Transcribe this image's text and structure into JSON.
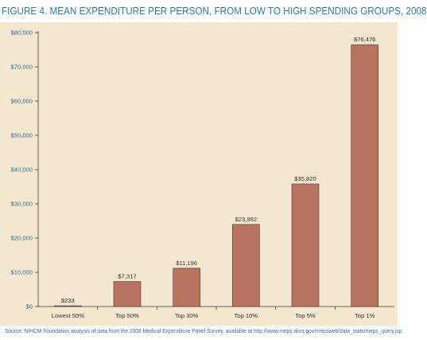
{
  "figure": {
    "title": "FIGURE 4. MEAN EXPENDITURE PER PERSON, FROM LOW TO HIGH SPENDING GROUPS, 2008",
    "source": "Source: NIHCM Foundation analysis of data from the 2008 Medical Expenditure Panel Survey, available at http://www.meps.ahrq.gov/mepsweb/data_stats/meps_query.jsp"
  },
  "colors": {
    "bar_fill": "#b87460",
    "bar_stroke": "#4a3a32",
    "panel_bg": "#f3e7d0",
    "axis": "#3b3b3b",
    "title": "#2f7aa6",
    "tick_text": "#3b6a94",
    "label_text": "#333333"
  },
  "chart_data": {
    "type": "bar",
    "title": "",
    "xlabel": "",
    "ylabel": "",
    "categories": [
      "Lowest 50%",
      "Top 50%",
      "Top 30%",
      "Top 10%",
      "Top 5%",
      "Top 1%"
    ],
    "values": [
      233,
      7317,
      11196,
      23992,
      35820,
      76476
    ],
    "data_labels": [
      "$233",
      "$7,317",
      "$11,196",
      "$23,992",
      "$35,820",
      "$76,476"
    ],
    "ylim": [
      0,
      80000
    ],
    "yticks": [
      0,
      10000,
      20000,
      30000,
      40000,
      50000,
      60000,
      70000,
      80000
    ],
    "ytick_labels": [
      "$0",
      "$10,000",
      "$20,000",
      "$30,000",
      "$40,000",
      "$50,000",
      "$60,000",
      "$70,000",
      "$80,000"
    ],
    "grid": false,
    "legend": "none"
  }
}
